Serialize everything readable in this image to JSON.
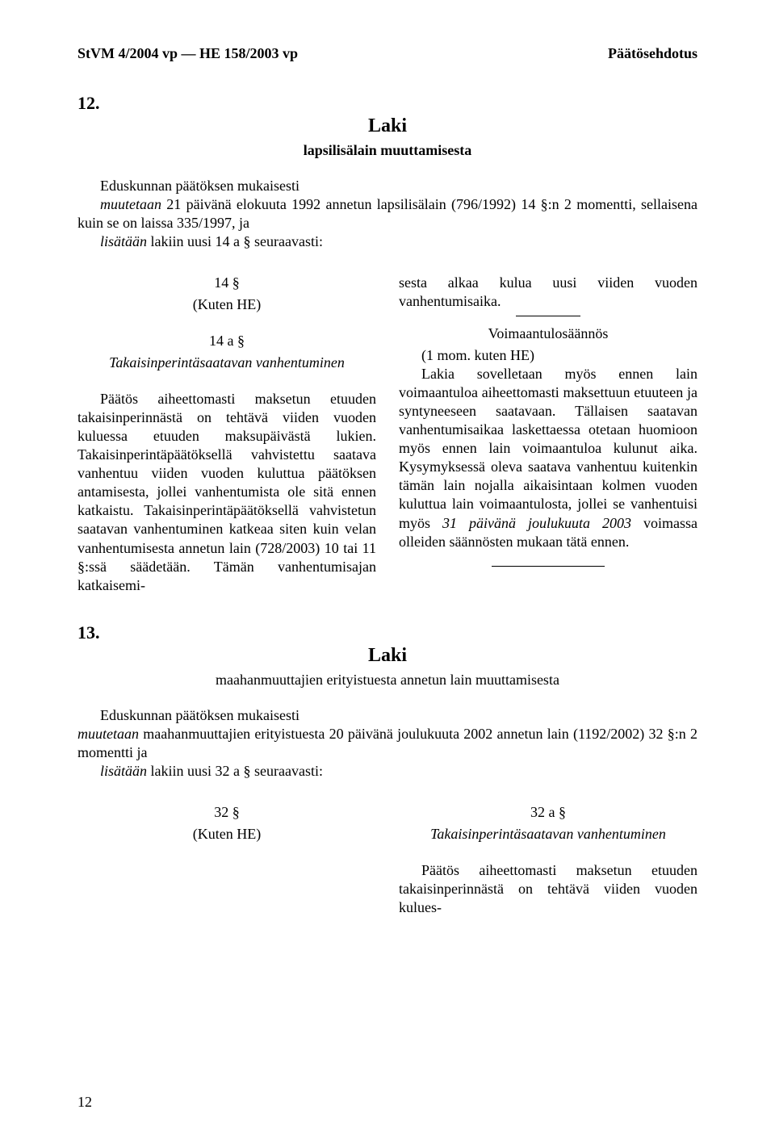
{
  "header": {
    "left": "StVM 4/2004 vp — HE 158/2003 vp",
    "right": "Päätösehdotus"
  },
  "pageNumber": "12",
  "section12": {
    "number": "12.",
    "lawTitle": "Laki",
    "lawSubtitle": "lapsilisälain muuttamisesta",
    "intro": {
      "line1": "Eduskunnan päätöksen mukaisesti",
      "line2_prefix": "muutetaan",
      "line2_rest": " 21 päivänä elokuuta 1992 annetun lapsilisälain (796/1992) 14 §:n 2 momentti, sellaisena kuin se on laissa 335/1997, ja",
      "line3_prefix": "lisätään",
      "line3_rest": " lakiin uusi 14 a § seuraavasti:"
    },
    "left": {
      "h1": "14 §",
      "h1sub": "(Kuten HE)",
      "h2": "14 a §",
      "h2sub": "Takaisinperintäsaatavan vanhentuminen",
      "body": "Päätös aiheettomasti maksetun etuuden takaisinperinnästä on tehtävä viiden vuoden kuluessa etuuden maksupäivästä lukien. Takaisinperintäpäätöksellä vahvistettu saatava vanhentuu viiden vuoden kuluttua päätöksen antamisesta, jollei vanhentumista ole sitä ennen katkaistu. Takaisinperintäpäätöksellä vahvistetun saatavan vanhentuminen katkeaa siten kuin velan vanhentumisesta annetun lain (728/2003) 10 tai 11 §:ssä säädetään. Tämän vanhentumisajan katkaisemi-"
    },
    "right": {
      "topBody": "sesta alkaa kulua uusi viiden vuoden vanhentumisaika.",
      "voimHeading": "Voimaantulosäännös",
      "mom": "(1 mom. kuten HE)",
      "body_part1": "Lakia sovelletaan myös ennen lain voimaantuloa aiheettomasti maksettuun etuuteen ja syntyneeseen saatavaan. Tällaisen saatavan vanhentumisaikaa laskettaessa otetaan huomioon myös ennen lain voimaantuloa kulunut aika. Kysymyksessä oleva saatava vanhentuu kuitenkin tämän lain nojalla aikaisintaan kolmen vuoden kuluttua lain voimaantulosta, jollei se vanhentuisi myös ",
      "body_italic": "31 päivänä joulukuuta 2003 ",
      "body_part2": " voimassa olleiden säännösten mukaan tätä ennen."
    }
  },
  "section13": {
    "number": "13.",
    "lawTitle": "Laki",
    "lawSubtitle": "maahanmuuttajien erityistuesta annetun lain muuttamisesta",
    "intro": {
      "line1": "Eduskunnan päätöksen mukaisesti",
      "line2_prefix": "muutetaan",
      "line2_rest": " maahanmuuttajien erityistuesta 20 päivänä joulukuuta 2002 annetun lain (1192/2002) 32 §:n 2 momentti ja",
      "line3_prefix": "lisätään",
      "line3_rest": " lakiin uusi 32 a § seuraavasti:"
    },
    "left": {
      "h1": "32 §",
      "h1sub": "(Kuten HE)"
    },
    "right": {
      "h2": "32 a §",
      "h2sub": "Takaisinperintäsaatavan vanhentuminen",
      "body": "Päätös aiheettomasti maksetun etuuden takaisinperinnästä on tehtävä viiden vuoden kulues-"
    }
  }
}
